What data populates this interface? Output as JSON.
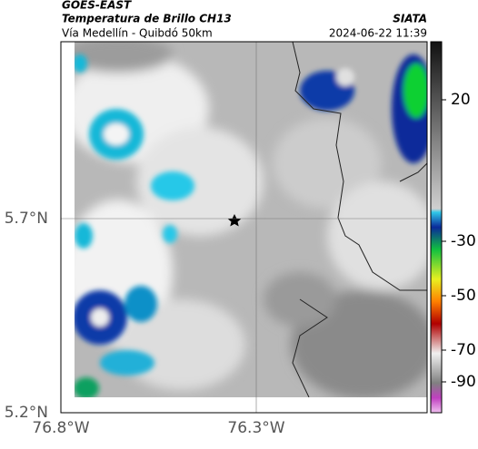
{
  "header": {
    "satellite": "GOES-EAST",
    "product": "Temperatura de Brillo CH13",
    "source": "SIATA",
    "route": "Vía Medellín - Quibdó 50km",
    "timestamp": "2024-06-22 11:39"
  },
  "axes": {
    "lat_ticks": [
      {
        "value": 5.7,
        "label": "5.7°N"
      },
      {
        "value": 5.2,
        "label": "5.2°N"
      }
    ],
    "lon_ticks": [
      {
        "value": -76.8,
        "label": "76.8°W"
      },
      {
        "value": -76.3,
        "label": "76.3°W"
      }
    ]
  },
  "colorbar": {
    "ticks": [
      20,
      -30,
      -50,
      -70,
      -90
    ]
  }
}
